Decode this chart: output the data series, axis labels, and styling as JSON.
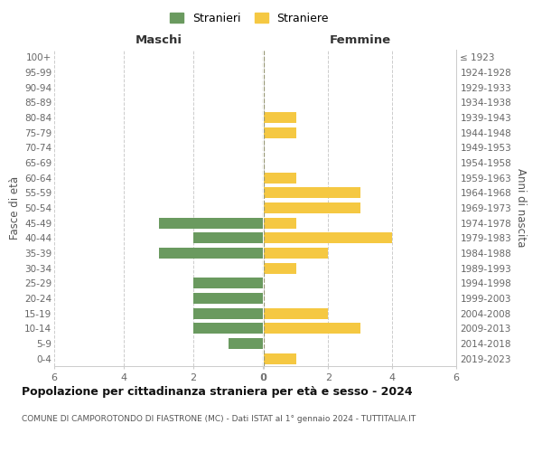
{
  "age_groups": [
    "0-4",
    "5-9",
    "10-14",
    "15-19",
    "20-24",
    "25-29",
    "30-34",
    "35-39",
    "40-44",
    "45-49",
    "50-54",
    "55-59",
    "60-64",
    "65-69",
    "70-74",
    "75-79",
    "80-84",
    "85-89",
    "90-94",
    "95-99",
    "100+"
  ],
  "birth_years": [
    "2019-2023",
    "2014-2018",
    "2009-2013",
    "2004-2008",
    "1999-2003",
    "1994-1998",
    "1989-1993",
    "1984-1988",
    "1979-1983",
    "1974-1978",
    "1969-1973",
    "1964-1968",
    "1959-1963",
    "1954-1958",
    "1949-1953",
    "1944-1948",
    "1939-1943",
    "1934-1938",
    "1929-1933",
    "1924-1928",
    "≤ 1923"
  ],
  "males": [
    0,
    1,
    2,
    2,
    2,
    2,
    0,
    3,
    2,
    3,
    0,
    0,
    0,
    0,
    0,
    0,
    0,
    0,
    0,
    0,
    0
  ],
  "females": [
    1,
    0,
    3,
    2,
    0,
    0,
    1,
    2,
    4,
    1,
    3,
    3,
    1,
    0,
    0,
    1,
    1,
    0,
    0,
    0,
    0
  ],
  "male_color": "#6a9a5f",
  "female_color": "#f5c842",
  "male_label": "Stranieri",
  "female_label": "Straniere",
  "title1": "Popolazione per cittadinanza straniera per età e sesso - 2024",
  "title2": "COMUNE DI CAMPOROTONDO DI FIASTRONE (MC) - Dati ISTAT al 1° gennaio 2024 - TUTTITALIA.IT",
  "xlabel_left": "Maschi",
  "xlabel_right": "Femmine",
  "ylabel_left": "Fasce di età",
  "ylabel_right": "Anni di nascita",
  "xlim": 6,
  "background_color": "#ffffff",
  "grid_color": "#cccccc"
}
